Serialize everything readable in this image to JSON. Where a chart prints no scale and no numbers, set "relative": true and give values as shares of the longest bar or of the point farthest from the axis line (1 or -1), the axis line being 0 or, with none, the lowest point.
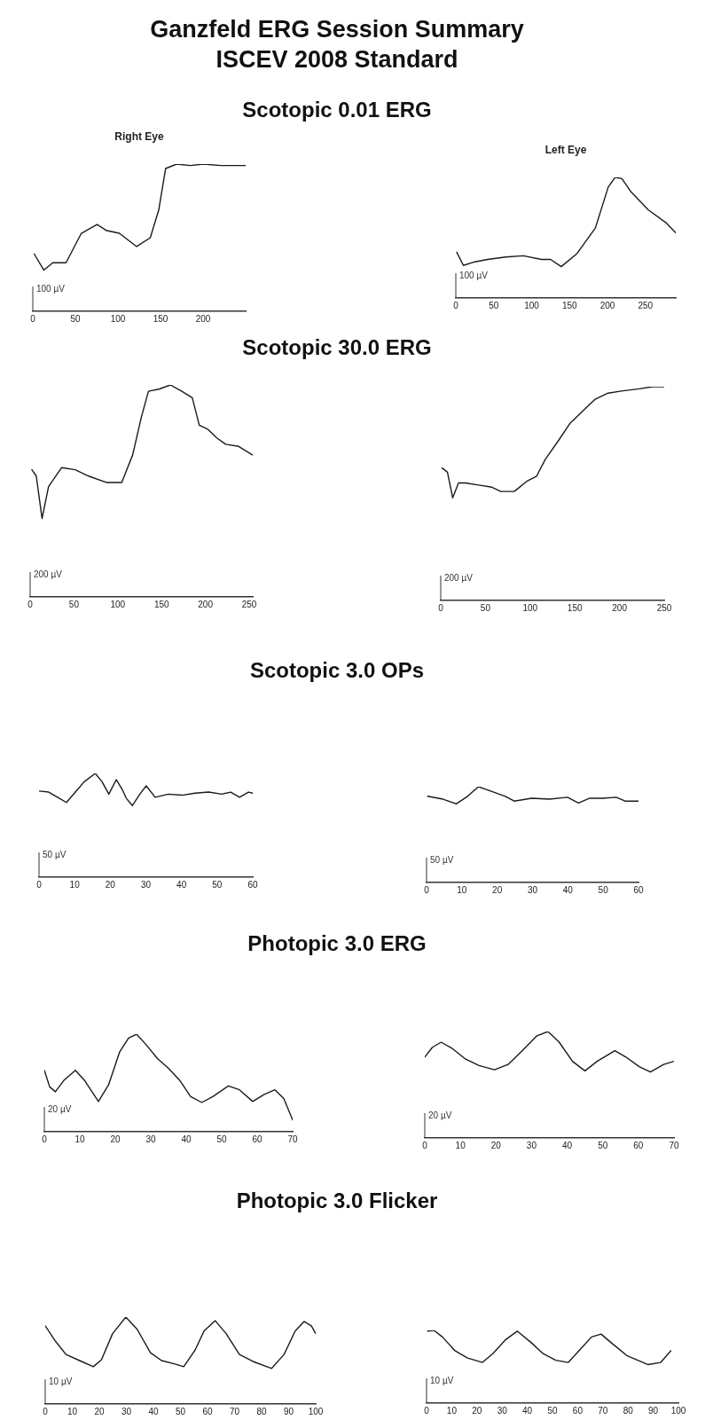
{
  "chart_data": [
    {
      "type": "line",
      "title": "Scotopic 0.01 ERG",
      "subtitle": "Right Eye",
      "annotations": [
        "Ganzfeld ERG Session Summary",
        "ISCEV 2008 Standard",
        "100 µV"
      ],
      "relative": true,
      "color": "#1a1a1a",
      "xlim": [
        0,
        250
      ],
      "xticks": [
        0,
        50,
        100,
        150,
        200
      ],
      "x": [
        1.6,
        13,
        23.4,
        39,
        57,
        75.5,
        86,
        101.6,
        122,
        138,
        148,
        156,
        169,
        185,
        200.5,
        221,
        250
      ],
      "values": [
        0.39,
        0.28,
        0.33,
        0.33,
        0.53,
        0.59,
        0.55,
        0.53,
        0.44,
        0.5,
        0.69,
        0.97,
        1.0,
        0.99,
        1.0,
        0.99,
        0.99
      ]
    },
    {
      "type": "line",
      "subtitle": "Left Eye",
      "annotations": [
        "100 µV"
      ],
      "relative": true,
      "color": "#1a1a1a",
      "xlim": [
        0,
        290
      ],
      "xticks": [
        0,
        50,
        100,
        150,
        200,
        250
      ],
      "x": [
        1.2,
        10,
        25,
        42,
        66,
        89,
        113,
        125,
        139,
        160,
        184,
        201,
        210,
        219,
        231,
        254,
        278,
        290
      ],
      "values": [
        0.38,
        0.27,
        0.3,
        0.32,
        0.34,
        0.35,
        0.32,
        0.32,
        0.26,
        0.37,
        0.58,
        0.92,
        1.0,
        0.99,
        0.88,
        0.73,
        0.62,
        0.54
      ]
    },
    {
      "type": "line",
      "title": "Scotopic 30.0 ERG",
      "annotations": [
        "200 µV"
      ],
      "relative": true,
      "color": "#1a1a1a",
      "xlim": [
        0,
        254
      ],
      "xticks": [
        0,
        50,
        100,
        150,
        200,
        250
      ],
      "x": [
        2,
        7,
        13.6,
        21,
        36,
        51.5,
        66.7,
        86.9,
        104.5,
        117,
        127,
        135,
        147,
        160,
        173,
        185,
        193,
        203,
        213,
        223,
        238,
        253.5
      ],
      "values": [
        0.6,
        0.57,
        0.37,
        0.52,
        0.61,
        0.6,
        0.57,
        0.54,
        0.54,
        0.67,
        0.85,
        0.97,
        0.98,
        1.0,
        0.97,
        0.94,
        0.81,
        0.79,
        0.75,
        0.72,
        0.71,
        0.67
      ]
    },
    {
      "type": "line",
      "annotations": [
        "200 µV"
      ],
      "relative": true,
      "color": "#1a1a1a",
      "xlim": [
        0,
        250
      ],
      "xticks": [
        0,
        50,
        100,
        150,
        200,
        250
      ],
      "x": [
        1.5,
        7.5,
        13.4,
        19.9,
        27.4,
        42.3,
        57.3,
        67.2,
        82.2,
        97.1,
        107,
        117,
        132,
        144.9,
        152.4,
        162.4,
        172.3,
        187.3,
        202.2,
        222.1,
        237,
        250
      ],
      "values": [
        0.62,
        0.6,
        0.48,
        0.55,
        0.55,
        0.54,
        0.53,
        0.51,
        0.51,
        0.56,
        0.58,
        0.66,
        0.75,
        0.83,
        0.86,
        0.9,
        0.94,
        0.97,
        0.98,
        0.99,
        1.0,
        1.0
      ]
    },
    {
      "type": "line",
      "title": "Scotopic 3.0 OPs",
      "annotations": [
        "50 µV"
      ],
      "relative": true,
      "color": "#1a1a1a",
      "xlim": [
        0,
        60
      ],
      "xticks": [
        0,
        10,
        20,
        30,
        40,
        50,
        60
      ],
      "x": [
        0,
        2.7,
        5.2,
        7.7,
        10.2,
        12.7,
        15.8,
        17.7,
        19.6,
        21.7,
        23.3,
        24.5,
        26.2,
        28.3,
        30.1,
        32.6,
        36.3,
        40.1,
        43.8,
        47.6,
        51.3,
        53.8,
        56.3,
        58.8,
        60
      ],
      "values": [
        0.83,
        0.82,
        0.77,
        0.72,
        0.82,
        0.92,
        1.0,
        0.92,
        0.8,
        0.94,
        0.85,
        0.76,
        0.69,
        0.8,
        0.88,
        0.77,
        0.8,
        0.79,
        0.81,
        0.82,
        0.8,
        0.82,
        0.77,
        0.82,
        0.81
      ]
    },
    {
      "type": "line",
      "annotations": [
        "50 µV"
      ],
      "relative": true,
      "color": "#1a1a1a",
      "xlim": [
        0,
        60
      ],
      "xticks": [
        0,
        10,
        20,
        30,
        40,
        50,
        60
      ],
      "x": [
        0.3,
        4.7,
        8.4,
        11.6,
        14.7,
        18.5,
        22.3,
        24.8,
        29.8,
        34.8,
        39.9,
        43,
        46.2,
        49.9,
        53.7,
        56.2,
        60
      ],
      "values": [
        0.9,
        0.87,
        0.82,
        0.9,
        1.0,
        0.95,
        0.9,
        0.85,
        0.88,
        0.87,
        0.89,
        0.83,
        0.88,
        0.88,
        0.89,
        0.85,
        0.85
      ]
    },
    {
      "type": "line",
      "title": "Photopic 3.0 ERG",
      "annotations": [
        "20 µV"
      ],
      "relative": true,
      "color": "#1a1a1a",
      "xlim": [
        0,
        70
      ],
      "xticks": [
        0,
        10,
        20,
        30,
        40,
        50,
        60,
        70
      ],
      "x": [
        0,
        1.5,
        3.1,
        5.6,
        8.75,
        11.25,
        15.25,
        18.1,
        21.25,
        23.75,
        26,
        28.75,
        31.9,
        35,
        38.1,
        41.25,
        44.4,
        47.5,
        51.9,
        55,
        58.75,
        61.9,
        65,
        67.5,
        70
      ],
      "values": [
        0.63,
        0.46,
        0.41,
        0.53,
        0.63,
        0.53,
        0.31,
        0.48,
        0.82,
        0.96,
        1.0,
        0.89,
        0.75,
        0.65,
        0.53,
        0.36,
        0.3,
        0.36,
        0.47,
        0.43,
        0.31,
        0.38,
        0.43,
        0.34,
        0.12
      ]
    },
    {
      "type": "line",
      "annotations": [
        "20 µV"
      ],
      "relative": true,
      "color": "#1a1a1a",
      "xlim": [
        0,
        70
      ],
      "xticks": [
        0,
        10,
        20,
        30,
        40,
        50,
        60,
        70
      ],
      "x": [
        0,
        2.1,
        4.6,
        7.75,
        11.5,
        15.25,
        19.6,
        23.4,
        27.1,
        31.5,
        34.6,
        37.75,
        41.5,
        45,
        48.4,
        53.4,
        56.5,
        60.25,
        63.4,
        67.1,
        70
      ],
      "values": [
        0.76,
        0.85,
        0.9,
        0.84,
        0.74,
        0.68,
        0.64,
        0.69,
        0.81,
        0.96,
        1.0,
        0.9,
        0.72,
        0.63,
        0.72,
        0.82,
        0.76,
        0.67,
        0.62,
        0.69,
        0.72
      ]
    },
    {
      "type": "line",
      "title": "Photopic 3.0 Flicker",
      "annotations": [
        "10 µV"
      ],
      "relative": true,
      "color": "#1a1a1a",
      "xlim": [
        0,
        100
      ],
      "xticks": [
        0,
        10,
        20,
        30,
        40,
        50,
        60,
        70,
        80,
        90,
        100
      ],
      "x": [
        0,
        3.6,
        7.7,
        12.7,
        17.8,
        20.8,
        24.9,
        29.8,
        34,
        38.9,
        43,
        48,
        51.2,
        55.4,
        58.7,
        62.8,
        66.9,
        71.8,
        76.8,
        83.7,
        88.3,
        92.4,
        95.7,
        98.4,
        100
      ],
      "values": [
        0.9,
        0.73,
        0.57,
        0.5,
        0.43,
        0.51,
        0.81,
        1.0,
        0.86,
        0.59,
        0.5,
        0.46,
        0.43,
        0.62,
        0.84,
        0.96,
        0.81,
        0.57,
        0.49,
        0.41,
        0.57,
        0.84,
        0.95,
        0.9,
        0.81
      ]
    },
    {
      "type": "line",
      "annotations": [
        "10 µV"
      ],
      "relative": true,
      "color": "#1a1a1a",
      "xlim": [
        0,
        100
      ],
      "xticks": [
        0,
        10,
        20,
        30,
        40,
        50,
        60,
        70,
        80,
        90,
        100
      ],
      "x": [
        0.5,
        3,
        6.3,
        11.3,
        16.3,
        22.2,
        26.3,
        31.3,
        36,
        41.3,
        46.3,
        51.3,
        56.3,
        61.3,
        65.5,
        69.3,
        73,
        79.7,
        88,
        93,
        97
      ],
      "values": [
        0.99,
        1.0,
        0.91,
        0.72,
        0.62,
        0.56,
        0.68,
        0.87,
        0.99,
        0.84,
        0.68,
        0.59,
        0.56,
        0.75,
        0.91,
        0.95,
        0.84,
        0.65,
        0.53,
        0.56,
        0.72
      ]
    }
  ]
}
